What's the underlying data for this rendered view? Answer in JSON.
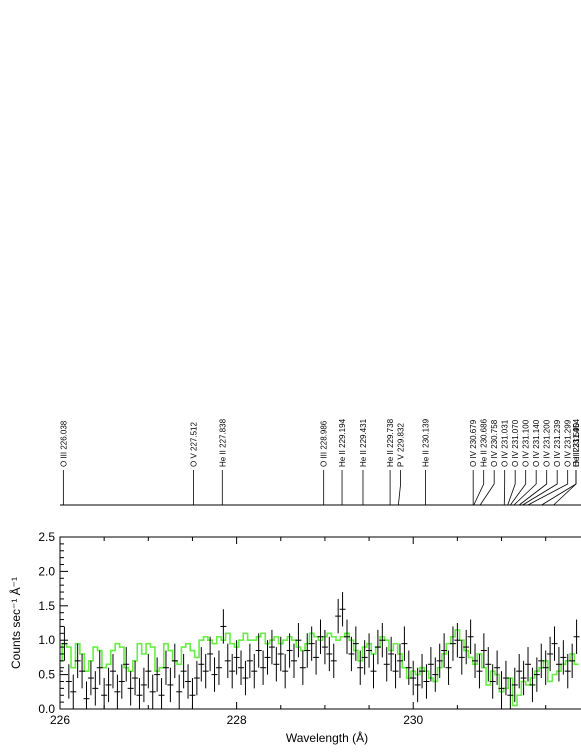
{
  "chart_data": {
    "type": "line",
    "xlabel": "Wavelength (Å)",
    "ylabel": "Counts sec⁻¹ Å⁻¹",
    "xlim": [
      226.0,
      231.9
    ],
    "ylim": [
      0.0,
      2.5
    ],
    "x_ticks": [
      226,
      228,
      230
    ],
    "y_ticks": [
      "0.0",
      "0.5",
      "1.0",
      "1.5",
      "2.0",
      "2.5"
    ],
    "grid": false,
    "line_ids": [
      {
        "label": "O III 226.038",
        "x": 226.038
      },
      {
        "label": "O V 227.512",
        "x": 227.512
      },
      {
        "label": "He II 227.838",
        "x": 227.838
      },
      {
        "label": "O III 228.986",
        "x": 228.986
      },
      {
        "label": "He II 229.194",
        "x": 229.194
      },
      {
        "label": "He II 229.431",
        "x": 229.431
      },
      {
        "label": "He II 229.738",
        "x": 229.738
      },
      {
        "label": "P V 229.832",
        "x": 229.832
      },
      {
        "label": "He II 230.139",
        "x": 230.139
      },
      {
        "label": "O IV 230.679",
        "x": 230.679
      },
      {
        "label": "He II 230.686",
        "x": 230.686
      },
      {
        "label": "O IV 230.758",
        "x": 230.758
      },
      {
        "label": "O IV 231.031",
        "x": 231.031
      },
      {
        "label": "O IV 231.070",
        "x": 231.07
      },
      {
        "label": "O IV 231.100",
        "x": 231.1
      },
      {
        "label": "O IV 231.140",
        "x": 231.14
      },
      {
        "label": "O IV 231.200",
        "x": 231.2
      },
      {
        "label": "O IV 231.239",
        "x": 231.239
      },
      {
        "label": "O IV 231.299",
        "x": 231.299
      },
      {
        "label": "He II 231.454",
        "x": 231.454
      },
      {
        "label": "O II 231.590",
        "x": 231.59
      }
    ],
    "series": [
      {
        "style": "crosses",
        "color": "#000000",
        "x": [
          226.0,
          226.05,
          226.1,
          226.15,
          226.2,
          226.25,
          226.3,
          226.35,
          226.4,
          226.45,
          226.5,
          226.55,
          226.6,
          226.65,
          226.7,
          226.75,
          226.8,
          226.85,
          226.9,
          226.95,
          227.0,
          227.05,
          227.1,
          227.15,
          227.2,
          227.25,
          227.3,
          227.35,
          227.4,
          227.45,
          227.5,
          227.55,
          227.6,
          227.65,
          227.7,
          227.75,
          227.8,
          227.85,
          227.9,
          227.95,
          228.0,
          228.05,
          228.1,
          228.15,
          228.2,
          228.25,
          228.3,
          228.35,
          228.4,
          228.45,
          228.5,
          228.55,
          228.6,
          228.65,
          228.7,
          228.75,
          228.8,
          228.85,
          228.9,
          228.95,
          229.0,
          229.05,
          229.1,
          229.15,
          229.2,
          229.25,
          229.3,
          229.35,
          229.4,
          229.45,
          229.5,
          229.55,
          229.6,
          229.65,
          229.7,
          229.75,
          229.8,
          229.85,
          229.9,
          229.95,
          230.0,
          230.05,
          230.1,
          230.15,
          230.2,
          230.25,
          230.3,
          230.35,
          230.4,
          230.45,
          230.5,
          230.55,
          230.6,
          230.65,
          230.7,
          230.75,
          230.8,
          230.85,
          230.9,
          230.95,
          231.0,
          231.05,
          231.1,
          231.15,
          231.2,
          231.25,
          231.3,
          231.35,
          231.4,
          231.45,
          231.5,
          231.55,
          231.6,
          231.65,
          231.7,
          231.75,
          231.8,
          231.85
        ],
        "y": [
          0.55,
          0.95,
          0.4,
          0.25,
          0.7,
          0.55,
          0.15,
          0.45,
          0.3,
          0.6,
          0.2,
          0.35,
          0.55,
          0.25,
          0.4,
          0.65,
          0.3,
          0.45,
          0.2,
          0.35,
          0.55,
          0.25,
          0.5,
          0.2,
          0.6,
          0.35,
          0.7,
          0.25,
          0.55,
          0.4,
          0.2,
          0.45,
          0.65,
          0.55,
          0.8,
          0.5,
          0.6,
          1.2,
          0.7,
          0.55,
          0.75,
          0.6,
          0.45,
          0.7,
          0.55,
          0.85,
          0.6,
          0.75,
          0.9,
          0.65,
          0.8,
          0.55,
          0.85,
          0.7,
          1.0,
          0.6,
          0.85,
          0.95,
          0.75,
          1.05,
          0.9,
          0.8,
          0.7,
          1.35,
          1.45,
          1.05,
          0.8,
          0.95,
          0.6,
          0.75,
          0.85,
          0.55,
          0.9,
          1.0,
          0.65,
          0.8,
          0.55,
          0.7,
          0.95,
          0.6,
          0.45,
          0.35,
          0.55,
          0.4,
          0.65,
          0.5,
          0.7,
          0.85,
          0.6,
          0.95,
          1.0,
          0.75,
          0.9,
          1.05,
          0.7,
          0.55,
          0.85,
          0.65,
          0.4,
          0.6,
          0.3,
          0.45,
          0.2,
          0.35,
          0.55,
          0.45,
          0.65,
          0.35,
          0.5,
          0.7,
          0.6,
          0.8,
          0.95,
          0.65,
          0.75,
          0.55,
          0.7,
          1.05
        ],
        "yerr": 0.25
      },
      {
        "style": "steps",
        "color": "#66ee44",
        "x": [
          226.0,
          226.05,
          226.1,
          226.15,
          226.2,
          226.25,
          226.3,
          226.35,
          226.4,
          226.45,
          226.5,
          226.55,
          226.6,
          226.65,
          226.7,
          226.75,
          226.8,
          226.85,
          226.9,
          226.95,
          227.0,
          227.05,
          227.1,
          227.15,
          227.2,
          227.25,
          227.3,
          227.35,
          227.4,
          227.45,
          227.5,
          227.55,
          227.6,
          227.65,
          227.7,
          227.75,
          227.8,
          227.85,
          227.9,
          227.95,
          228.0,
          228.05,
          228.1,
          228.15,
          228.2,
          228.25,
          228.3,
          228.35,
          228.4,
          228.45,
          228.5,
          228.55,
          228.6,
          228.65,
          228.7,
          228.75,
          228.8,
          228.85,
          228.9,
          228.95,
          229.0,
          229.05,
          229.1,
          229.15,
          229.2,
          229.25,
          229.3,
          229.35,
          229.4,
          229.45,
          229.5,
          229.55,
          229.6,
          229.65,
          229.7,
          229.75,
          229.8,
          229.85,
          229.9,
          229.95,
          230.0,
          230.05,
          230.1,
          230.15,
          230.2,
          230.25,
          230.3,
          230.35,
          230.4,
          230.45,
          230.5,
          230.55,
          230.6,
          230.65,
          230.7,
          230.75,
          230.8,
          230.85,
          230.9,
          230.95,
          231.0,
          231.05,
          231.1,
          231.15,
          231.2,
          231.25,
          231.3,
          231.35,
          231.4,
          231.45,
          231.5,
          231.55,
          231.6,
          231.65,
          231.7,
          231.75,
          231.8,
          231.85
        ],
        "y": [
          0.7,
          0.95,
          0.9,
          0.6,
          0.95,
          0.8,
          0.55,
          0.7,
          0.9,
          0.85,
          0.6,
          0.65,
          0.85,
          0.95,
          0.9,
          0.6,
          0.55,
          0.7,
          0.95,
          0.8,
          0.95,
          0.9,
          0.55,
          0.6,
          0.95,
          0.85,
          0.7,
          0.65,
          0.9,
          0.95,
          0.85,
          0.75,
          1.0,
          1.05,
          1.0,
          0.95,
          1.05,
          1.0,
          1.1,
          0.95,
          0.9,
          1.0,
          1.1,
          1.0,
          1.0,
          1.05,
          1.1,
          0.95,
          1.0,
          1.05,
          0.95,
          1.0,
          1.05,
          1.0,
          0.9,
          0.85,
          0.95,
          1.1,
          1.05,
          1.0,
          1.05,
          1.1,
          1.05,
          1.0,
          1.05,
          1.1,
          1.0,
          0.85,
          0.7,
          0.9,
          0.95,
          0.8,
          0.9,
          1.05,
          1.0,
          0.85,
          0.95,
          0.8,
          0.6,
          0.45,
          0.55,
          0.5,
          0.6,
          0.55,
          0.45,
          0.4,
          0.6,
          0.8,
          0.95,
          1.05,
          1.15,
          1.0,
          0.85,
          0.75,
          0.65,
          0.8,
          0.6,
          0.35,
          0.55,
          0.5,
          0.25,
          0.3,
          0.45,
          0.05,
          0.2,
          0.4,
          0.35,
          0.45,
          0.55,
          0.6,
          0.7,
          0.4,
          0.5,
          0.55,
          0.65,
          0.7,
          0.8,
          0.65
        ]
      }
    ]
  }
}
